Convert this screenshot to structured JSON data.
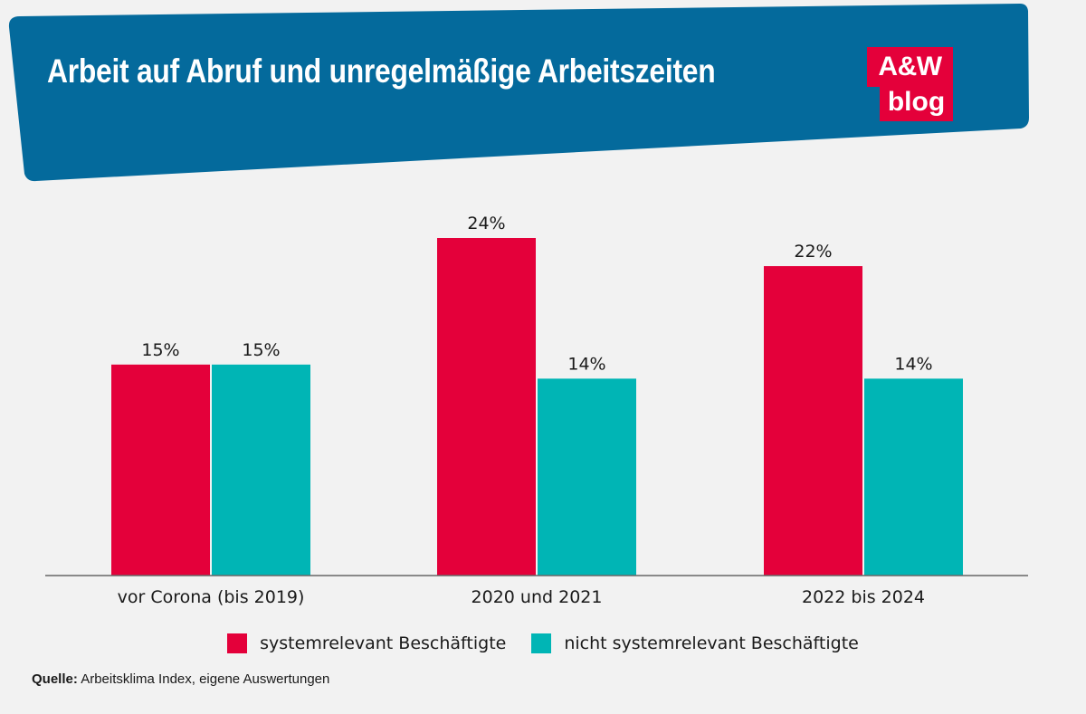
{
  "title": "Arbeit auf Abruf und unregelmäßige Arbeitszeiten",
  "logo": {
    "line1": "A&W",
    "line2": "blog"
  },
  "colors": {
    "header": "#046a9c",
    "series1": "#e4003a",
    "series2": "#00b5b5",
    "axis": "#666666",
    "text": "#1a1a1a"
  },
  "chart_data": {
    "type": "bar",
    "title": "Arbeit auf Abruf und unregelmäßige Arbeitszeiten",
    "categories": [
      "vor Corona (bis 2019)",
      "2020 und 2021",
      "2022 bis 2024"
    ],
    "series": [
      {
        "name": "systemrelevant Beschäftigte",
        "values": [
          15,
          24,
          22
        ],
        "labels": [
          "15%",
          "24%",
          "22%"
        ]
      },
      {
        "name": "nicht systemrelevant Beschäftigte",
        "values": [
          15,
          14,
          14
        ],
        "labels": [
          "15%",
          "14%",
          "14%"
        ]
      }
    ],
    "ylim": [
      0,
      24
    ],
    "xlabel": "",
    "ylabel": "",
    "grid": false,
    "legend": "bottom"
  },
  "legend": {
    "item1": "systemrelevant Beschäftigte",
    "item2": "nicht systemrelevant Beschäftigte"
  },
  "source": {
    "label": "Quelle:",
    "text": "Arbeitsklima Index, eigene Auswertungen"
  }
}
